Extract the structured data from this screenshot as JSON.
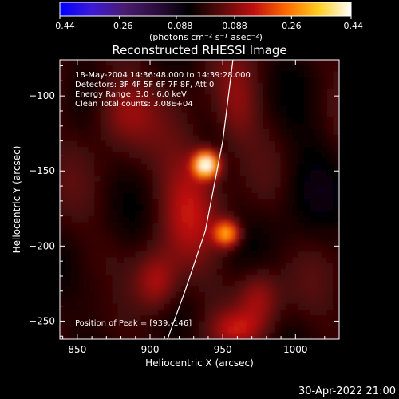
{
  "colorbar": {
    "ticks": [
      -0.44,
      -0.26,
      -0.088,
      0.088,
      0.26,
      0.44
    ],
    "tick_labels": [
      "−0.44",
      "−0.26",
      "−0.088",
      "0.088",
      "0.26",
      "0.44"
    ],
    "units_label": "(photons cm⁻² s⁻¹ asec⁻²)",
    "colors": [
      "#0000ff",
      "#3d1ad6",
      "#4a1c70",
      "#2b0d3d",
      "#000000",
      "#5a0a0a",
      "#c01010",
      "#ff6a00",
      "#ffcf20",
      "#ffffff"
    ]
  },
  "chart_data": {
    "type": "heatmap",
    "title": "Reconstructed RHESSI Image",
    "xlabel": "Heliocentric X (arcsec)",
    "ylabel": "Heliocentric Y (arcsec)",
    "xlim": [
      838,
      1030
    ],
    "ylim": [
      -262,
      -76
    ],
    "xticks": [
      850,
      900,
      950,
      1000
    ],
    "xtick_labels": [
      "850",
      "900",
      "950",
      "1000"
    ],
    "yticks": [
      -100,
      -150,
      -200,
      -250
    ],
    "ytick_labels": [
      "−100",
      "−150",
      "−200",
      "−250"
    ],
    "vmin": -0.44,
    "vmax": 0.44,
    "annotations": [
      "18-May-2004 14:36:48.000 to 14:39:28.000",
      "Detectors: 3F 4F 5F 6F 7F 8F, Att 0",
      "Energy Range: 3.0 - 6.0 keV",
      "Clean     Total counts: 3.08E+04"
    ],
    "peak_label": "Position of Peak = [939,-146]",
    "peak": {
      "x": 939,
      "y": -146
    },
    "sources": [
      {
        "x": 939,
        "y": -146,
        "value": 0.44,
        "sx": 6,
        "sy": 6
      },
      {
        "x": 953,
        "y": -192,
        "value": 0.3,
        "sx": 6,
        "sy": 6
      },
      {
        "x": 927,
        "y": -168,
        "value": 0.12,
        "sx": 14,
        "sy": 30
      },
      {
        "x": 905,
        "y": -225,
        "value": 0.14,
        "sx": 10,
        "sy": 14
      },
      {
        "x": 880,
        "y": -110,
        "value": 0.1,
        "sx": 14,
        "sy": 16
      },
      {
        "x": 975,
        "y": -235,
        "value": 0.12,
        "sx": 10,
        "sy": 14
      },
      {
        "x": 960,
        "y": -110,
        "value": 0.08,
        "sx": 10,
        "sy": 20
      },
      {
        "x": 960,
        "y": -255,
        "value": 0.1,
        "sx": 12,
        "sy": 8
      },
      {
        "x": 1005,
        "y": -160,
        "value": -0.05,
        "sx": 15,
        "sy": 30
      },
      {
        "x": 870,
        "y": -230,
        "value": -0.04,
        "sx": 12,
        "sy": 15
      }
    ],
    "limb": [
      [
        957,
        -76
      ],
      [
        950,
        -130
      ],
      [
        938,
        -190
      ],
      [
        924,
        -230
      ],
      [
        912,
        -262
      ]
    ]
  },
  "footer": {
    "timestamp": "30-Apr-2022 21:00"
  }
}
